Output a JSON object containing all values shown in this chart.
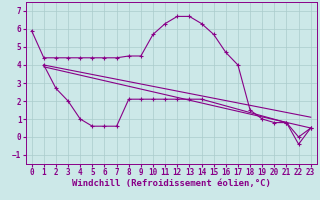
{
  "xlabel": "Windchill (Refroidissement éolien,°C)",
  "background_color": "#cce8e8",
  "line_color": "#880088",
  "xlim": [
    -0.5,
    23.5
  ],
  "ylim": [
    -1.5,
    7.5
  ],
  "xticks": [
    0,
    1,
    2,
    3,
    4,
    5,
    6,
    7,
    8,
    9,
    10,
    11,
    12,
    13,
    14,
    15,
    16,
    17,
    18,
    19,
    20,
    21,
    22,
    23
  ],
  "yticks": [
    -1,
    0,
    1,
    2,
    3,
    4,
    5,
    6,
    7
  ],
  "series1_x": [
    0,
    1,
    2,
    3,
    4,
    5,
    6,
    7,
    8,
    9,
    10,
    11,
    12,
    13,
    14,
    15,
    16,
    17,
    18,
    19,
    20,
    21,
    22,
    23
  ],
  "series1_y": [
    5.9,
    4.4,
    4.4,
    4.4,
    4.4,
    4.4,
    4.4,
    4.4,
    4.5,
    4.5,
    5.7,
    6.3,
    6.7,
    6.7,
    6.3,
    5.7,
    4.7,
    4.0,
    1.5,
    1.0,
    0.8,
    0.8,
    0.0,
    0.5
  ],
  "series2_x": [
    1,
    2,
    3,
    4,
    5,
    6,
    7,
    8,
    9,
    10,
    11,
    12,
    13,
    14,
    21,
    22,
    23
  ],
  "series2_y": [
    4.0,
    2.7,
    2.0,
    1.0,
    0.6,
    0.6,
    0.6,
    2.1,
    2.1,
    2.1,
    2.1,
    2.1,
    2.1,
    2.1,
    0.8,
    -0.4,
    0.5
  ],
  "series3_x": [
    1,
    23
  ],
  "series3_y": [
    4.0,
    1.1
  ],
  "series4_x": [
    1,
    23
  ],
  "series4_y": [
    3.9,
    0.5
  ],
  "grid_color": "#aacccc",
  "tick_fontsize": 5.5,
  "xlabel_fontsize": 6.5,
  "marker_size": 3.5
}
